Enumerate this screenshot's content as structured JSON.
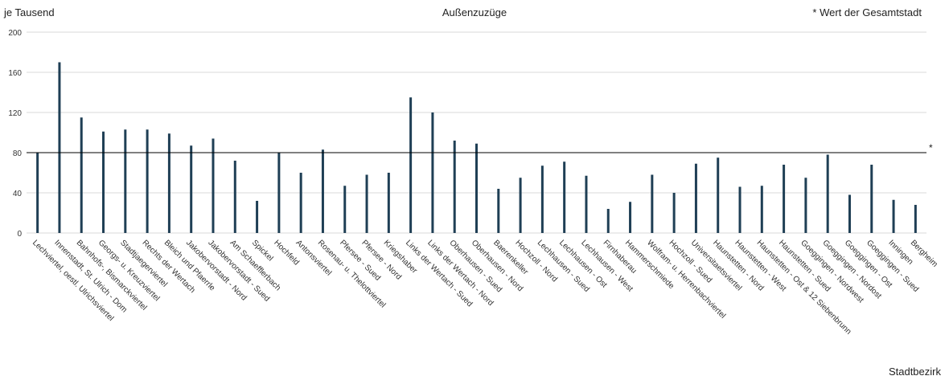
{
  "header": {
    "title": "Außenzuzüge",
    "y_unit": "je Tausend",
    "reference_legend": "* Wert der Gesamtstadt",
    "x_axis_label": "Stadtbezirk"
  },
  "chart_data": {
    "type": "bar",
    "title": "Außenzuzüge",
    "ylabel": "je Tausend",
    "xlabel": "Stadtbezirk",
    "ylim": [
      0,
      200
    ],
    "yticks": [
      0,
      40,
      80,
      120,
      160,
      200
    ],
    "grid": true,
    "bar_color": "#1f3f55",
    "reference_line": {
      "value": 80,
      "label": "*",
      "color": "#000000"
    },
    "categories": [
      "Lechviertel, oestl. Ulrichsviertel",
      "Innenstadt, St. Ulrich - Dom",
      "Bahnhofs-, Bismarckviertel",
      "Georgs- u. Kreuzviertel",
      "Stadtjaegerviertel",
      "Rechts der Wertach",
      "Bleich und Pfaerrle",
      "Jakobervorstadt - Nord",
      "Jakobervorstadt - Sued",
      "Am Schaefflerbach",
      "Spickel",
      "Hochfeld",
      "Antonsviertel",
      "Rosenau- u. Thelottviertel",
      "Pfersee - Sued",
      "Pfersee - Nord",
      "Kriegshaber",
      "Links der Wertach - Sued",
      "Links der Wertach - Nord",
      "Oberhausen - Sued",
      "Oberhausen - Nord",
      "Baerenkeller",
      "Hochzoll - Nord",
      "Lechhausen - Sued",
      "Lechhausen - Ost",
      "Lechhausen - West",
      "Firnhaberau",
      "Hammerschmiede",
      "Wolfram- u. Herrenbachviertel",
      "Hochzoll - Sued",
      "Universitaetsviertel",
      "Haunstetten - Nord",
      "Haunstetten - West",
      "Haunstetten - Ost & 12 Siebenbrunn",
      "Haunstetten - Sued",
      "Goeggingen - Nordwest",
      "Goeggingen - Nordost",
      "Goeggingen - Ost",
      "Goeggingen - Sued",
      "Inningen",
      "Bergheim"
    ],
    "values": [
      80,
      170,
      115,
      101,
      103,
      103,
      99,
      87,
      94,
      72,
      32,
      80,
      60,
      83,
      47,
      58,
      60,
      135,
      120,
      92,
      89,
      44,
      55,
      67,
      71,
      57,
      24,
      31,
      58,
      40,
      69,
      75,
      46,
      47,
      68,
      55,
      78,
      38,
      68,
      33,
      28
    ]
  }
}
